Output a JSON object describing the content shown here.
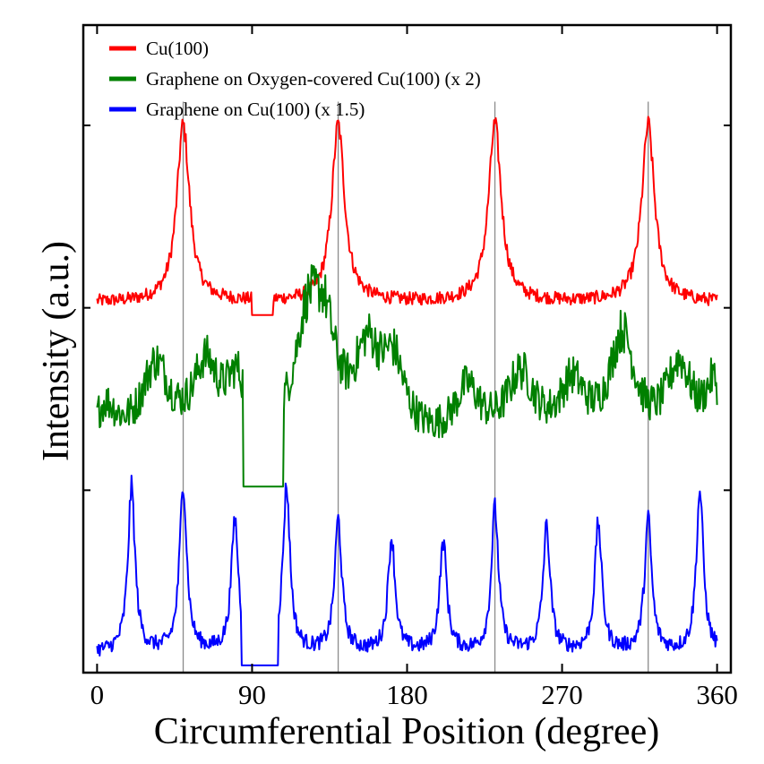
{
  "chart_data": {
    "type": "line",
    "title": "",
    "xlabel": "Circumferential Position (degree)",
    "ylabel": "Intensity (a.u.)",
    "xlim": [
      -8,
      368
    ],
    "ylim": [
      0,
      3.55
    ],
    "x_ticks": [
      0,
      90,
      180,
      270,
      360
    ],
    "x_tick_labels": [
      "0",
      "90",
      "180",
      "270",
      "360"
    ],
    "y_tick_values": [
      0,
      1,
      2,
      3
    ],
    "y_tick_labels_shown": false,
    "grid": false,
    "legend_position": "top-left",
    "vertical_reference_lines": [
      50,
      140,
      231,
      320
    ],
    "series": [
      {
        "name": "Cu(100)",
        "color": "#ff0000",
        "baseline": 2.03,
        "noise": 0.035,
        "gap_range": [
          90,
          102
        ],
        "peaks": [
          {
            "x": 50,
            "height": 0.97,
            "width": 4.5
          },
          {
            "x": 140,
            "height": 0.97,
            "width": 4.5
          },
          {
            "x": 231,
            "height": 0.97,
            "width": 4.5
          },
          {
            "x": 320,
            "height": 0.97,
            "width": 4.5
          }
        ]
      },
      {
        "name": "Graphene on Oxygen-covered Cu(100) (x 2)",
        "color": "#008000",
        "baseline": 1.22,
        "noise": 0.09,
        "gap_range": [
          85,
          108
        ],
        "peaks": [
          {
            "x": 5,
            "height": 0.2,
            "width": 8
          },
          {
            "x": 34,
            "height": 0.42,
            "width": 10
          },
          {
            "x": 63,
            "height": 0.4,
            "width": 9
          },
          {
            "x": 81,
            "height": 0.3,
            "width": 7
          },
          {
            "x": 122,
            "height": 0.58,
            "width": 9
          },
          {
            "x": 132,
            "height": 0.5,
            "width": 8
          },
          {
            "x": 157,
            "height": 0.45,
            "width": 9
          },
          {
            "x": 172,
            "height": 0.38,
            "width": 8
          },
          {
            "x": 215,
            "height": 0.28,
            "width": 9
          },
          {
            "x": 246,
            "height": 0.36,
            "width": 10
          },
          {
            "x": 276,
            "height": 0.3,
            "width": 9
          },
          {
            "x": 305,
            "height": 0.58,
            "width": 9
          },
          {
            "x": 338,
            "height": 0.42,
            "width": 9
          },
          {
            "x": 358,
            "height": 0.3,
            "width": 6
          }
        ]
      },
      {
        "name": "Graphene on Cu(100) (x 1.5)",
        "color": "#0000ff",
        "baseline": 0.11,
        "noise": 0.04,
        "gap_range": [
          84,
          105
        ],
        "peaks": [
          {
            "x": 20,
            "height": 0.9,
            "width": 2.5
          },
          {
            "x": 50,
            "height": 0.92,
            "width": 2.5
          },
          {
            "x": 80,
            "height": 0.72,
            "width": 2.5
          },
          {
            "x": 110,
            "height": 0.9,
            "width": 2.5
          },
          {
            "x": 140,
            "height": 0.72,
            "width": 2.5
          },
          {
            "x": 171,
            "height": 0.62,
            "width": 2.5
          },
          {
            "x": 201,
            "height": 0.6,
            "width": 2.5
          },
          {
            "x": 231,
            "height": 0.78,
            "width": 2.5
          },
          {
            "x": 261,
            "height": 0.68,
            "width": 2.5
          },
          {
            "x": 291,
            "height": 0.7,
            "width": 2.5
          },
          {
            "x": 320,
            "height": 0.72,
            "width": 2.5
          },
          {
            "x": 350,
            "height": 0.88,
            "width": 2.5
          }
        ]
      }
    ]
  }
}
